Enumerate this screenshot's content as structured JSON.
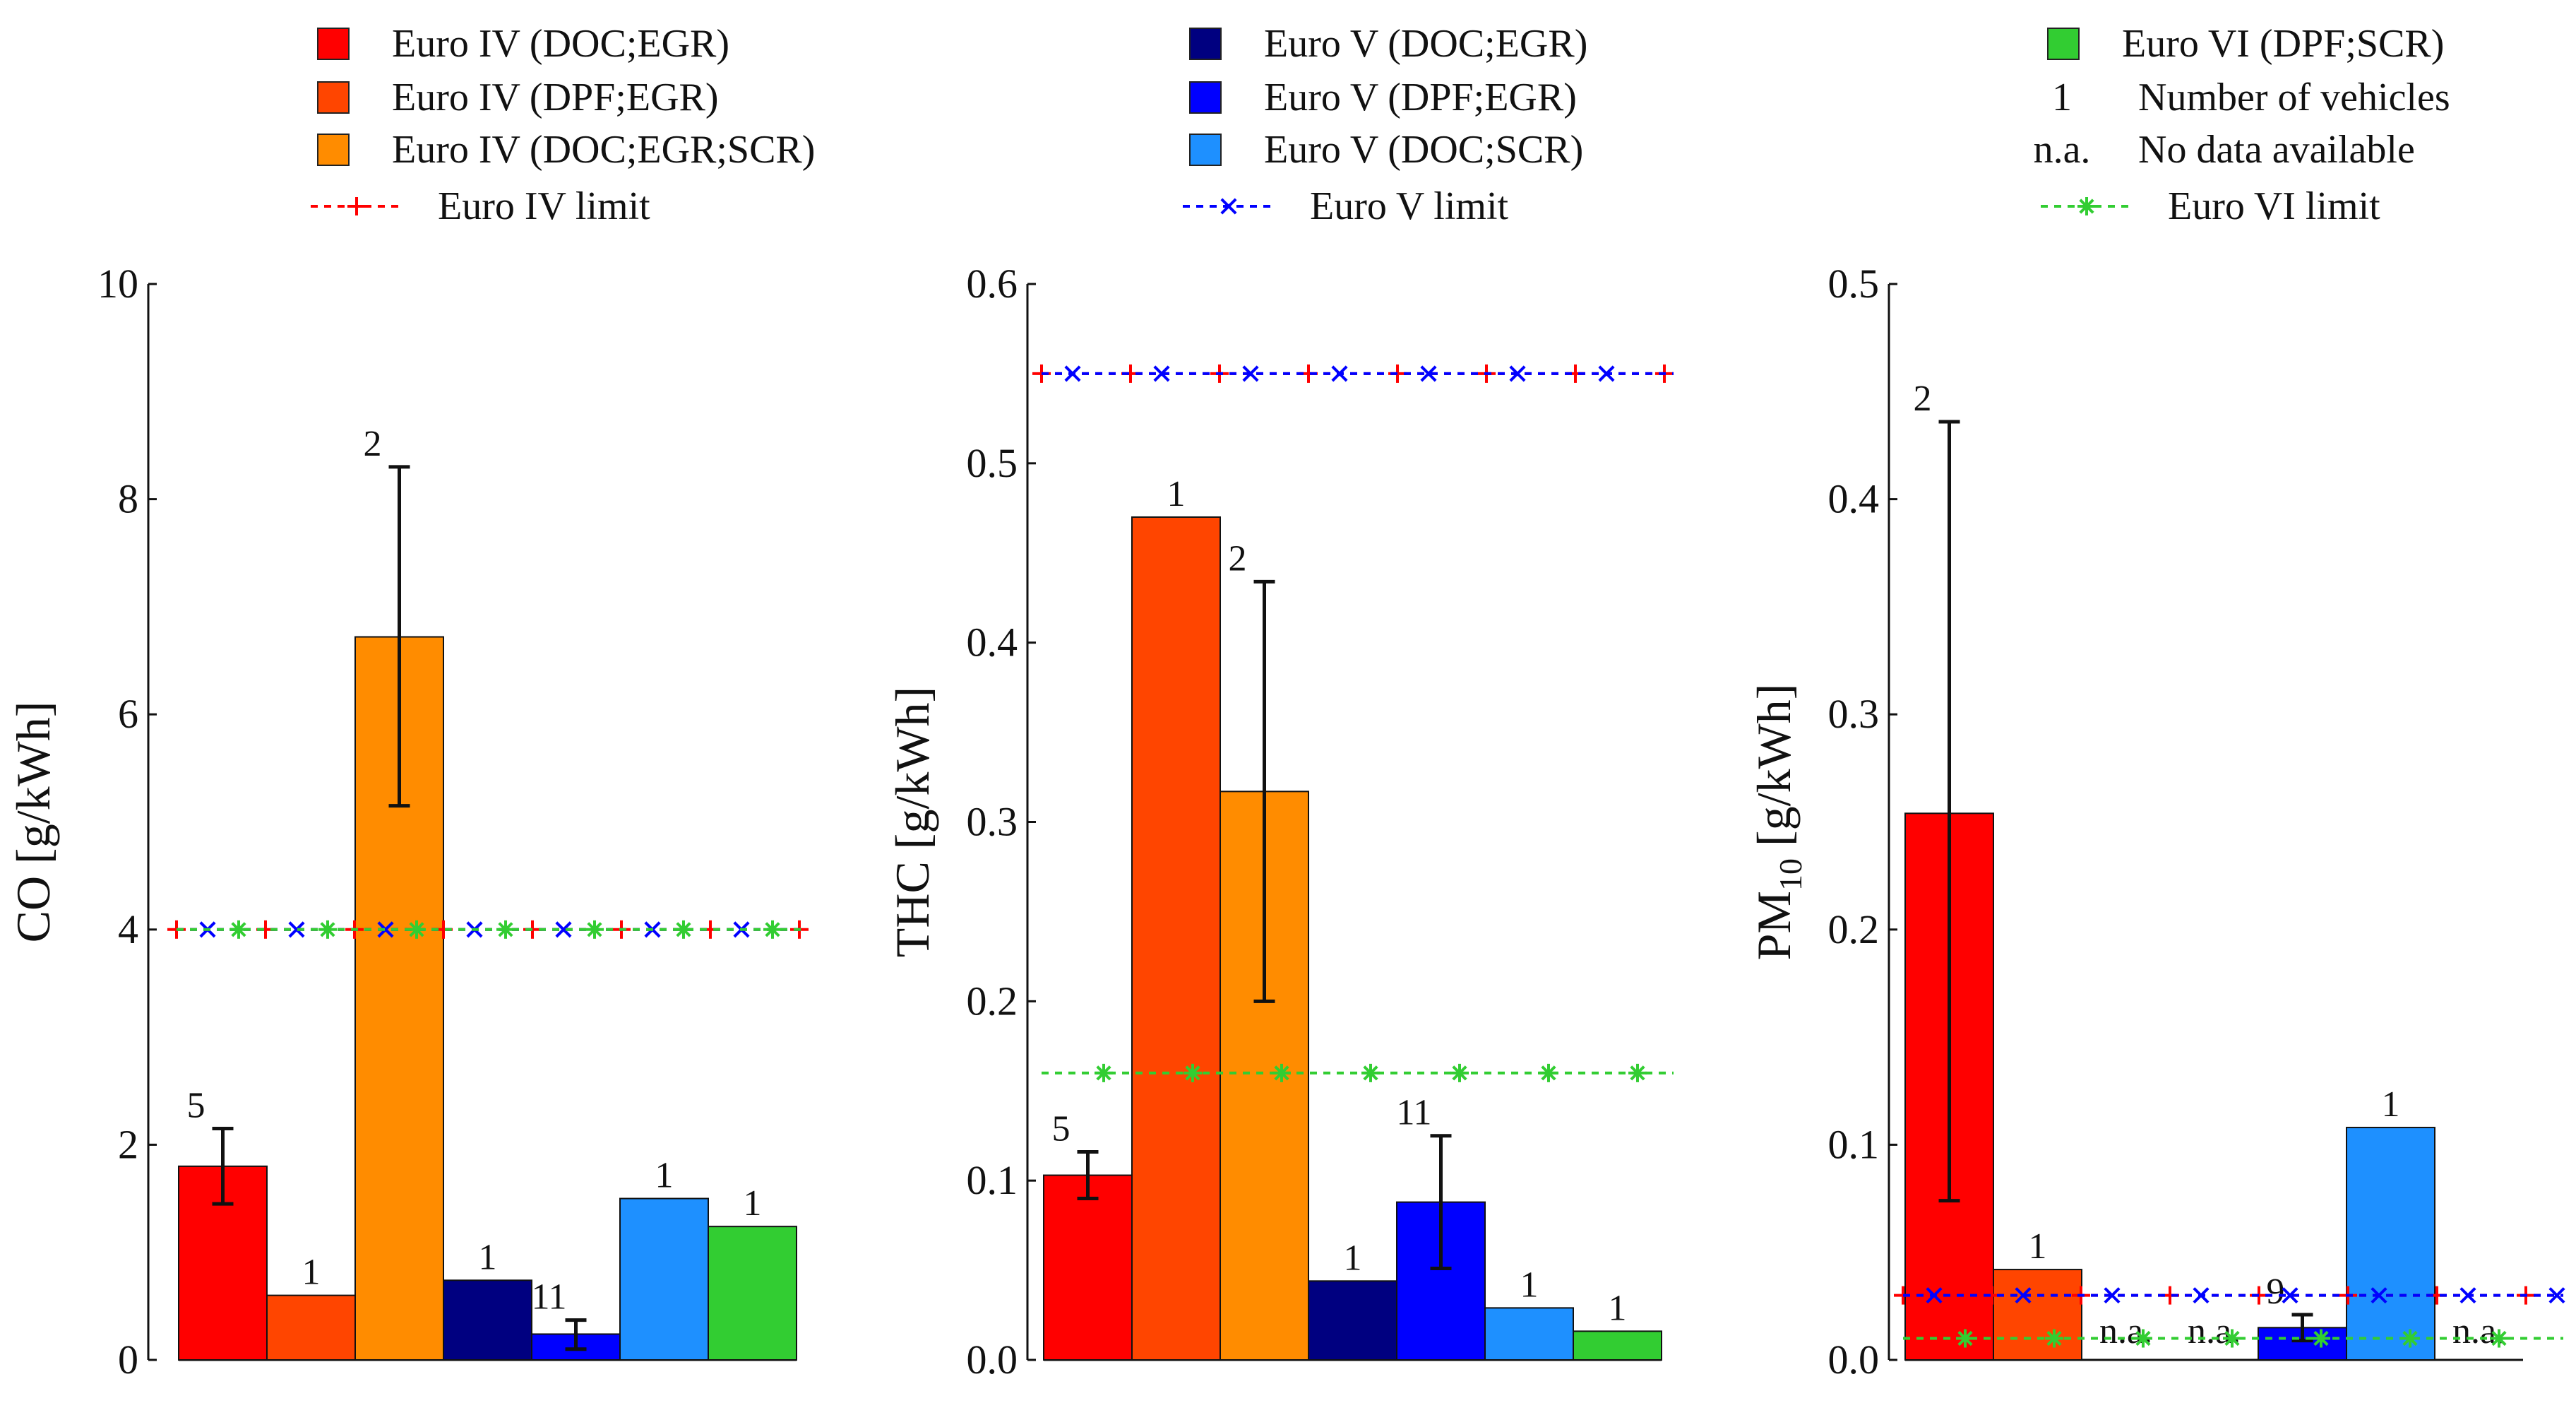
{
  "legend": {
    "col1": [
      {
        "kind": "swatch",
        "color": "#ff0000",
        "label": "Euro IV (DOC;EGR)"
      },
      {
        "kind": "swatch",
        "color": "#ff4500",
        "label": "Euro IV (DPF;EGR)"
      },
      {
        "kind": "swatch",
        "color": "#ff8c00",
        "label": "Euro IV (DOC;EGR;SCR)"
      },
      {
        "kind": "line",
        "color": "#ff0000",
        "marker": "+",
        "label": "Euro IV limit"
      }
    ],
    "col2": [
      {
        "kind": "swatch",
        "color": "#000080",
        "label": "Euro V (DOC;EGR)"
      },
      {
        "kind": "swatch",
        "color": "#0000ff",
        "label": "Euro V (DPF;EGR)"
      },
      {
        "kind": "swatch",
        "color": "#1e90ff",
        "label": "Euro V (DOC;SCR)"
      },
      {
        "kind": "line",
        "color": "#0000ff",
        "marker": "x",
        "label": "Euro V limit"
      }
    ],
    "col3": [
      {
        "kind": "swatch",
        "color": "#32cd32",
        "label": "Euro VI (DPF;SCR)"
      },
      {
        "kind": "text",
        "symbol": "1",
        "label": "Number of vehicles"
      },
      {
        "kind": "text",
        "symbol": "n.a.",
        "label": "No data available"
      },
      {
        "kind": "line",
        "color": "#32cd32",
        "marker": "*",
        "label": "Euro VI limit"
      }
    ]
  },
  "chart_data": [
    {
      "type": "bar",
      "ylabel": "CO [g/kWh]",
      "ylim": [
        0,
        10
      ],
      "yticks": [
        "0",
        "2",
        "4",
        "6",
        "8",
        "10"
      ],
      "bars": [
        {
          "name": "Euro IV (DOC;EGR)",
          "color": "#ff0000",
          "value": 1.8,
          "err": [
            1.45,
            2.15
          ],
          "n": "5"
        },
        {
          "name": "Euro IV (DPF;EGR)",
          "color": "#ff4500",
          "value": 0.6,
          "err": null,
          "n": "1"
        },
        {
          "name": "Euro IV (DOC;EGR;SCR)",
          "color": "#ff8c00",
          "value": 6.72,
          "err": [
            5.15,
            8.3
          ],
          "n": "2"
        },
        {
          "name": "Euro V (DOC;EGR)",
          "color": "#000080",
          "value": 0.74,
          "err": null,
          "n": "1"
        },
        {
          "name": "Euro V (DPF;EGR)",
          "color": "#0000ff",
          "value": 0.24,
          "err": [
            0.1,
            0.37
          ],
          "n": "11"
        },
        {
          "name": "Euro V (DOC;SCR)",
          "color": "#1e90ff",
          "value": 1.5,
          "err": null,
          "n": "1"
        },
        {
          "name": "Euro VI (DPF;SCR)",
          "color": "#32cd32",
          "value": 1.24,
          "err": null,
          "n": "1"
        }
      ],
      "limits": [
        {
          "name": "Euro IV limit",
          "value": 4.0,
          "color": "#ff0000",
          "marker": "+"
        },
        {
          "name": "Euro V limit",
          "value": 4.0,
          "color": "#0000ff",
          "marker": "x"
        },
        {
          "name": "Euro VI limit",
          "value": 4.0,
          "color": "#32cd32",
          "marker": "*"
        }
      ]
    },
    {
      "type": "bar",
      "ylabel": "THC [g/kWh]",
      "ylim": [
        0,
        0.6
      ],
      "yticks": [
        "0.0",
        "0.1",
        "0.2",
        "0.3",
        "0.4",
        "0.5",
        "0.6"
      ],
      "bars": [
        {
          "name": "Euro IV (DOC;EGR)",
          "color": "#ff0000",
          "value": 0.103,
          "err": [
            0.09,
            0.116
          ],
          "n": "5"
        },
        {
          "name": "Euro IV (DPF;EGR)",
          "color": "#ff4500",
          "value": 0.47,
          "err": null,
          "n": "1"
        },
        {
          "name": "Euro IV (DOC;EGR;SCR)",
          "color": "#ff8c00",
          "value": 0.317,
          "err": [
            0.2,
            0.434
          ],
          "n": "2"
        },
        {
          "name": "Euro V (DOC;EGR)",
          "color": "#000080",
          "value": 0.044,
          "err": null,
          "n": "1"
        },
        {
          "name": "Euro V (DPF;EGR)",
          "color": "#0000ff",
          "value": 0.088,
          "err": [
            0.051,
            0.125
          ],
          "n": "11"
        },
        {
          "name": "Euro V (DOC;SCR)",
          "color": "#1e90ff",
          "value": 0.029,
          "err": null,
          "n": "1"
        },
        {
          "name": "Euro VI (DPF;SCR)",
          "color": "#32cd32",
          "value": 0.016,
          "err": null,
          "n": "1"
        }
      ],
      "limits": [
        {
          "name": "Euro IV limit",
          "value": 0.55,
          "color": "#ff0000",
          "marker": "+"
        },
        {
          "name": "Euro V limit",
          "value": 0.55,
          "color": "#0000ff",
          "marker": "x"
        },
        {
          "name": "Euro VI limit",
          "value": 0.16,
          "color": "#32cd32",
          "marker": "*"
        }
      ]
    },
    {
      "type": "bar",
      "ylabel": "PM",
      "ylabel_sub": "10",
      "ylabel_unit": " [g/kWh]",
      "ylim": [
        0,
        0.5
      ],
      "yticks": [
        "0.0",
        "0.1",
        "0.2",
        "0.3",
        "0.4",
        "0.5"
      ],
      "bars": [
        {
          "name": "Euro IV (DOC;EGR)",
          "color": "#ff0000",
          "value": 0.254,
          "err": [
            0.074,
            0.436
          ],
          "n": "2"
        },
        {
          "name": "Euro IV (DPF;EGR)",
          "color": "#ff4500",
          "value": 0.042,
          "err": null,
          "n": "1"
        },
        {
          "name": "Euro IV (DOC;EGR;SCR)",
          "color": "#ff8c00",
          "value": null,
          "err": null,
          "n": "n.a."
        },
        {
          "name": "Euro V (DOC;EGR)",
          "color": "#000080",
          "value": null,
          "err": null,
          "n": "n.a."
        },
        {
          "name": "Euro V (DPF;EGR)",
          "color": "#0000ff",
          "value": 0.015,
          "err": [
            0.009,
            0.021
          ],
          "n": "9"
        },
        {
          "name": "Euro V (DOC;SCR)",
          "color": "#1e90ff",
          "value": 0.108,
          "err": null,
          "n": "1"
        },
        {
          "name": "Euro VI (DPF;SCR)",
          "color": "#32cd32",
          "value": null,
          "err": null,
          "n": "n.a."
        }
      ],
      "limits": [
        {
          "name": "Euro IV limit",
          "value": 0.03,
          "color": "#ff0000",
          "marker": "+"
        },
        {
          "name": "Euro V limit",
          "value": 0.03,
          "color": "#0000ff",
          "marker": "x"
        },
        {
          "name": "Euro VI limit",
          "value": 0.01,
          "color": "#32cd32",
          "marker": "*"
        }
      ]
    }
  ]
}
